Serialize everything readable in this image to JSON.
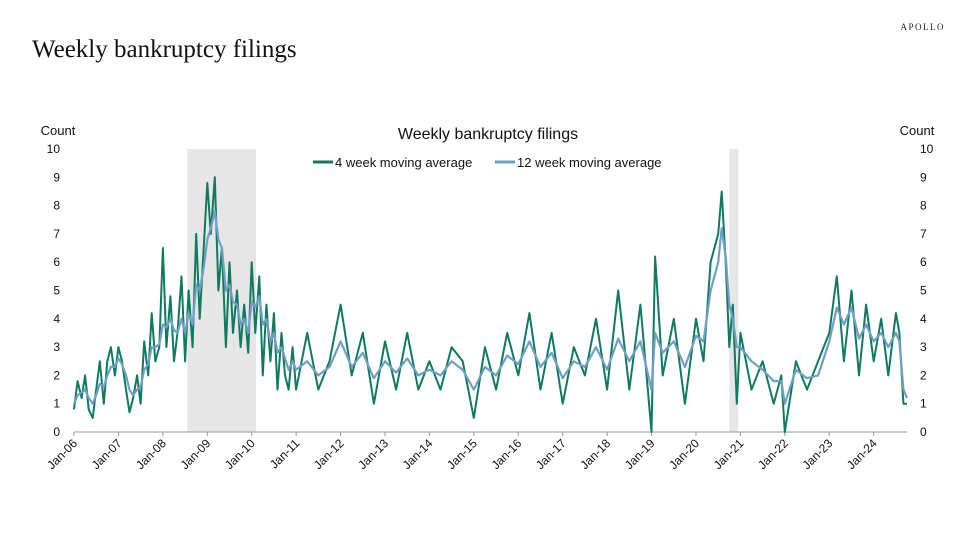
{
  "header": {
    "title": "Weekly bankruptcy filings",
    "brand": "APOLLO"
  },
  "colors": {
    "series_4wk": "#0f7a5f",
    "series_12wk": "#6f9fc4",
    "recession": "#dcdcdc"
  },
  "chart_data": {
    "type": "line",
    "title": "Weekly bankruptcy filings",
    "ylabel_left": "Count",
    "ylabel_right": "Count",
    "ylim": [
      0,
      10
    ],
    "yticks": [
      "0",
      "1",
      "2",
      "3",
      "4",
      "5",
      "6",
      "7",
      "8",
      "9",
      "10"
    ],
    "x_start": 2006.0,
    "x_end": 2024.75,
    "xticks": [
      {
        "label": "Jan-06",
        "x": 2006
      },
      {
        "label": "Jan-07",
        "x": 2007
      },
      {
        "label": "Jan-08",
        "x": 2008
      },
      {
        "label": "Jan-09",
        "x": 2009
      },
      {
        "label": "Jan-10",
        "x": 2010
      },
      {
        "label": "Jan-11",
        "x": 2011
      },
      {
        "label": "Jan-12",
        "x": 2012
      },
      {
        "label": "Jan-13",
        "x": 2013
      },
      {
        "label": "Jan-14",
        "x": 2014
      },
      {
        "label": "Jan-15",
        "x": 2015
      },
      {
        "label": "Jan-16",
        "x": 2016
      },
      {
        "label": "Jan-17",
        "x": 2017
      },
      {
        "label": "Jan-18",
        "x": 2018
      },
      {
        "label": "Jan-19",
        "x": 2019
      },
      {
        "label": "Jan-20",
        "x": 2020
      },
      {
        "label": "Jan-21",
        "x": 2021
      },
      {
        "label": "Jan-22",
        "x": 2022
      },
      {
        "label": "Jan-23",
        "x": 2023
      },
      {
        "label": "Jan-24",
        "x": 2024
      }
    ],
    "recessions": [
      {
        "start": 2008.55,
        "end": 2010.1
      },
      {
        "start": 2020.75,
        "end": 2020.95
      }
    ],
    "legend": [
      "4 week moving average",
      "12 week moving average"
    ],
    "series": [
      {
        "name": "4 week moving average",
        "x": [
          2006.0,
          2006.08,
          2006.17,
          2006.25,
          2006.33,
          2006.42,
          2006.5,
          2006.58,
          2006.67,
          2006.75,
          2006.83,
          2006.92,
          2007.0,
          2007.08,
          2007.17,
          2007.25,
          2007.33,
          2007.42,
          2007.5,
          2007.58,
          2007.67,
          2007.75,
          2007.83,
          2007.92,
          2008.0,
          2008.08,
          2008.17,
          2008.25,
          2008.33,
          2008.42,
          2008.5,
          2008.58,
          2008.67,
          2008.75,
          2008.83,
          2008.92,
          2009.0,
          2009.08,
          2009.17,
          2009.25,
          2009.33,
          2009.42,
          2009.5,
          2009.58,
          2009.67,
          2009.75,
          2009.83,
          2009.92,
          2010.0,
          2010.08,
          2010.17,
          2010.25,
          2010.33,
          2010.42,
          2010.5,
          2010.58,
          2010.67,
          2010.75,
          2010.83,
          2010.92,
          2011.0,
          2011.25,
          2011.5,
          2011.75,
          2012.0,
          2012.25,
          2012.5,
          2012.75,
          2013.0,
          2013.25,
          2013.5,
          2013.75,
          2014.0,
          2014.25,
          2014.5,
          2014.75,
          2015.0,
          2015.25,
          2015.5,
          2015.75,
          2016.0,
          2016.25,
          2016.5,
          2016.75,
          2017.0,
          2017.25,
          2017.5,
          2017.75,
          2018.0,
          2018.25,
          2018.5,
          2018.75,
          2019.0,
          2019.08,
          2019.25,
          2019.5,
          2019.75,
          2020.0,
          2020.17,
          2020.33,
          2020.5,
          2020.58,
          2020.67,
          2020.75,
          2020.83,
          2020.92,
          2021.0,
          2021.25,
          2021.5,
          2021.75,
          2021.92,
          2022.0,
          2022.25,
          2022.5,
          2022.75,
          2023.0,
          2023.17,
          2023.33,
          2023.5,
          2023.67,
          2023.83,
          2024.0,
          2024.17,
          2024.33,
          2024.5,
          2024.58,
          2024.67,
          2024.75
        ],
        "values": [
          0.8,
          1.8,
          1.2,
          2.0,
          0.8,
          0.5,
          1.5,
          2.5,
          1.0,
          2.5,
          3.0,
          2.0,
          3.0,
          2.5,
          1.5,
          0.7,
          1.2,
          2.0,
          1.0,
          3.2,
          2.0,
          4.2,
          2.5,
          3.0,
          6.5,
          3.0,
          4.8,
          2.5,
          3.5,
          5.5,
          2.5,
          5.0,
          3.0,
          7.0,
          4.0,
          6.5,
          8.8,
          7.0,
          9.0,
          5.0,
          6.5,
          3.0,
          6.0,
          3.5,
          5.0,
          3.0,
          4.5,
          2.8,
          6.0,
          3.5,
          5.5,
          2.0,
          4.5,
          2.5,
          4.2,
          1.5,
          3.5,
          2.0,
          1.5,
          3.0,
          1.5,
          3.5,
          1.5,
          2.5,
          4.5,
          2.0,
          3.5,
          1.0,
          3.2,
          1.5,
          3.5,
          1.5,
          2.5,
          1.5,
          3.0,
          2.5,
          0.5,
          3.0,
          1.5,
          3.5,
          2.0,
          4.2,
          1.5,
          3.5,
          1.0,
          3.0,
          2.0,
          4.0,
          1.5,
          5.0,
          1.5,
          4.5,
          0.0,
          6.2,
          2.0,
          4.0,
          1.0,
          4.0,
          2.5,
          6.0,
          7.0,
          8.5,
          6.0,
          3.0,
          4.5,
          1.0,
          3.5,
          1.5,
          2.5,
          1.0,
          2.0,
          0.0,
          2.5,
          1.5,
          2.5,
          3.5,
          5.5,
          2.5,
          5.0,
          2.0,
          4.5,
          2.5,
          4.0,
          2.0,
          4.2,
          3.5,
          1.0,
          1.0
        ]
      },
      {
        "name": "12 week moving average",
        "x": [
          2006.0,
          2006.08,
          2006.17,
          2006.25,
          2006.33,
          2006.42,
          2006.5,
          2006.58,
          2006.67,
          2006.75,
          2006.83,
          2006.92,
          2007.0,
          2007.08,
          2007.17,
          2007.25,
          2007.33,
          2007.42,
          2007.5,
          2007.58,
          2007.67,
          2007.75,
          2007.83,
          2007.92,
          2008.0,
          2008.08,
          2008.17,
          2008.25,
          2008.33,
          2008.42,
          2008.5,
          2008.58,
          2008.67,
          2008.75,
          2008.83,
          2008.92,
          2009.0,
          2009.08,
          2009.17,
          2009.25,
          2009.33,
          2009.42,
          2009.5,
          2009.58,
          2009.67,
          2009.75,
          2009.83,
          2009.92,
          2010.0,
          2010.08,
          2010.17,
          2010.25,
          2010.33,
          2010.42,
          2010.5,
          2010.58,
          2010.67,
          2010.75,
          2010.83,
          2010.92,
          2011.0,
          2011.25,
          2011.5,
          2011.75,
          2012.0,
          2012.25,
          2012.5,
          2012.75,
          2013.0,
          2013.25,
          2013.5,
          2013.75,
          2014.0,
          2014.25,
          2014.5,
          2014.75,
          2015.0,
          2015.25,
          2015.5,
          2015.75,
          2016.0,
          2016.25,
          2016.5,
          2016.75,
          2017.0,
          2017.25,
          2017.5,
          2017.75,
          2018.0,
          2018.25,
          2018.5,
          2018.75,
          2019.0,
          2019.08,
          2019.25,
          2019.5,
          2019.75,
          2020.0,
          2020.17,
          2020.33,
          2020.5,
          2020.58,
          2020.67,
          2020.75,
          2020.83,
          2020.92,
          2021.0,
          2021.25,
          2021.5,
          2021.75,
          2021.92,
          2022.0,
          2022.25,
          2022.5,
          2022.75,
          2023.0,
          2023.17,
          2023.33,
          2023.5,
          2023.67,
          2023.83,
          2024.0,
          2024.17,
          2024.33,
          2024.5,
          2024.58,
          2024.67,
          2024.75
        ],
        "values": [
          1.0,
          1.3,
          1.4,
          1.5,
          1.2,
          1.0,
          1.3,
          1.7,
          1.6,
          2.0,
          2.3,
          2.3,
          2.6,
          2.4,
          2.0,
          1.5,
          1.3,
          1.5,
          1.6,
          2.2,
          2.4,
          3.0,
          3.0,
          3.1,
          3.8,
          3.7,
          4.0,
          3.6,
          3.5,
          4.0,
          3.5,
          4.2,
          3.8,
          5.2,
          5.0,
          5.8,
          6.8,
          7.2,
          7.8,
          6.8,
          6.5,
          5.0,
          5.2,
          4.6,
          4.5,
          3.8,
          4.0,
          3.5,
          4.6,
          4.4,
          4.8,
          3.8,
          4.0,
          3.2,
          3.5,
          2.8,
          3.0,
          2.6,
          2.2,
          2.5,
          2.2,
          2.5,
          2.0,
          2.3,
          3.2,
          2.3,
          2.8,
          1.9,
          2.5,
          2.1,
          2.6,
          2.0,
          2.2,
          2.0,
          2.5,
          2.2,
          1.5,
          2.3,
          2.0,
          2.7,
          2.4,
          3.2,
          2.3,
          2.8,
          1.9,
          2.5,
          2.3,
          3.0,
          2.2,
          3.3,
          2.5,
          3.2,
          1.5,
          3.5,
          2.8,
          3.2,
          2.3,
          3.4,
          3.2,
          5.0,
          6.0,
          7.2,
          6.2,
          4.5,
          4.0,
          3.0,
          3.0,
          2.5,
          2.2,
          1.8,
          1.8,
          1.0,
          2.2,
          1.9,
          2.0,
          3.2,
          4.4,
          3.8,
          4.4,
          3.3,
          3.8,
          3.2,
          3.5,
          3.0,
          3.5,
          3.2,
          1.5,
          1.2
        ]
      }
    ]
  }
}
